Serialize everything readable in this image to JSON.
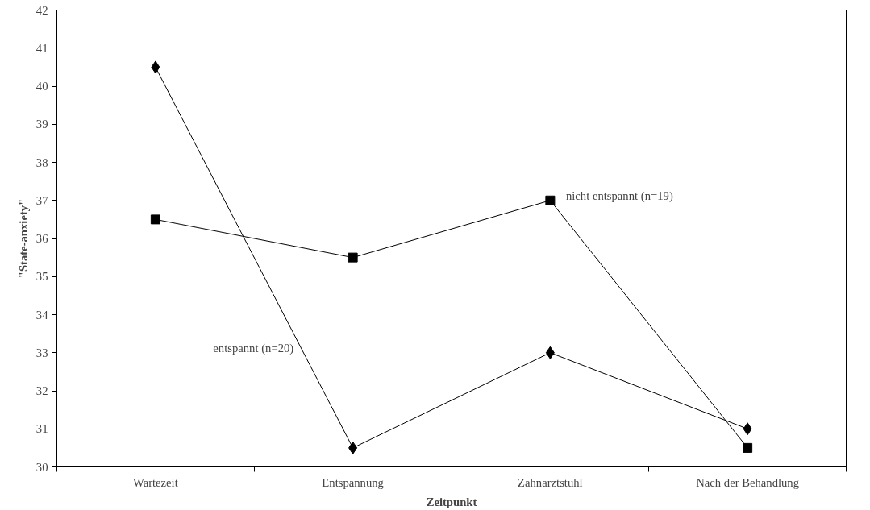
{
  "chart_data": {
    "type": "line",
    "xlabel": "Zeitpunkt",
    "ylabel": "\"State-anxiety\"",
    "categories": [
      "Wartezeit",
      "Entspannung",
      "Zahnarztstuhl",
      "Nach der Behandlung"
    ],
    "series": [
      {
        "name": "entspannt (n=20)",
        "color": "#000000",
        "marker": "diamond",
        "values": [
          40.5,
          30.5,
          33,
          31
        ]
      },
      {
        "name": "nicht entspannt (n=19)",
        "color": "#000000",
        "marker": "square",
        "values": [
          36.5,
          35.5,
          37,
          30.5
        ]
      }
    ],
    "ylim": [
      30,
      42
    ],
    "yticks": [
      30,
      31,
      32,
      33,
      34,
      35,
      36,
      37,
      38,
      39,
      40,
      41,
      42
    ],
    "grid": false,
    "line_style": "solid"
  }
}
